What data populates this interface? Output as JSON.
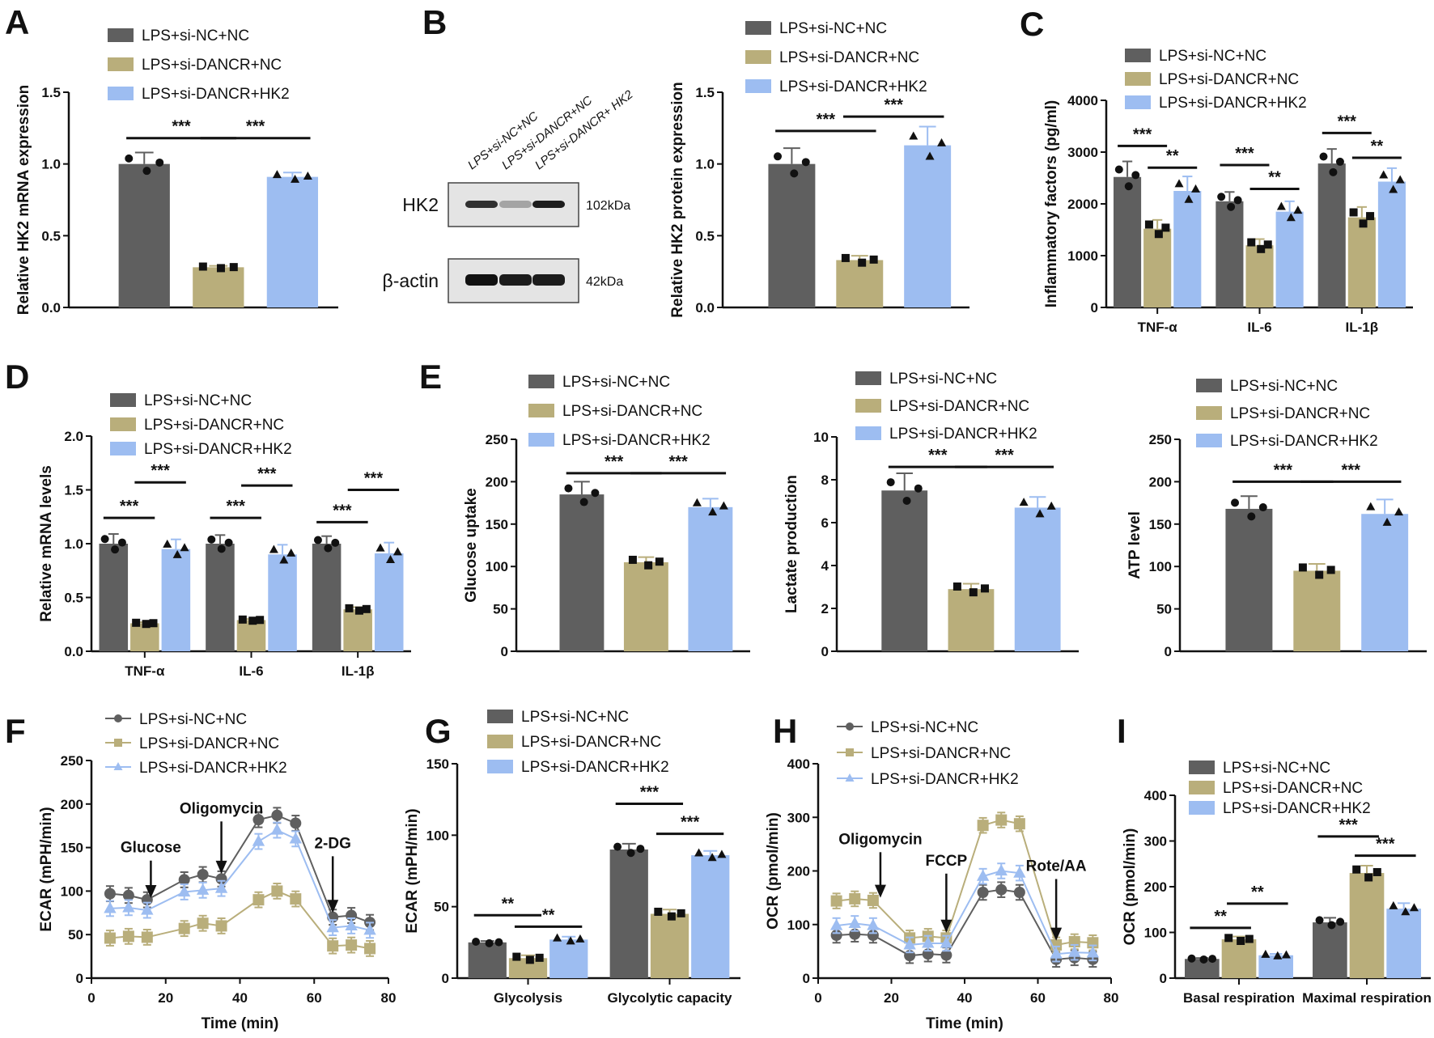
{
  "colors": {
    "nc": "#5f5f5f",
    "dancr": "#b9ae7b",
    "hk2": "#9dbdf1"
  },
  "legend": [
    "LPS+si-NC+NC",
    "LPS+si-DANCR+NC",
    "LPS+si-DANCR+HK2"
  ],
  "blot": {
    "lanes": [
      "LPS+si-NC+NC",
      "LPS+si-DANCR+NC",
      "LPS+si-DANCR+ HK2"
    ],
    "rows": [
      {
        "label": "HK2",
        "size": "102kDa",
        "intensity": [
          0.85,
          0.3,
          0.95
        ]
      },
      {
        "label": "β-actin",
        "size": "42kDa",
        "intensity": [
          1,
          0.95,
          0.95
        ]
      }
    ]
  },
  "chart_data": [
    {
      "id": "A",
      "letter": "A",
      "type": "bar",
      "ylabel": "Relative HK2 mRNA expression",
      "ylim": [
        0,
        1.5
      ],
      "ticks": [
        "0.0",
        "0.5",
        "1.0",
        "1.5"
      ],
      "categories": [
        ""
      ],
      "series": [
        {
          "values": [
            1.0
          ],
          "err": [
            0.08
          ]
        },
        {
          "values": [
            0.28
          ],
          "err": [
            0.01
          ]
        },
        {
          "values": [
            0.91
          ],
          "err": [
            0.03
          ]
        }
      ],
      "sig": [
        {
          "group": 0,
          "from": 0,
          "to": 1,
          "y": 1.18,
          "label": "***"
        },
        {
          "group": 0,
          "from": 1,
          "to": 2,
          "y": 1.18,
          "label": "***"
        }
      ]
    },
    {
      "id": "B",
      "letter": "B",
      "type": "bar",
      "ylabel": "Relative HK2 protein expression",
      "ylim": [
        0,
        1.5
      ],
      "ticks": [
        "0.0",
        "0.5",
        "1.0",
        "1.5"
      ],
      "categories": [
        ""
      ],
      "series": [
        {
          "values": [
            1.0
          ],
          "err": [
            0.11
          ]
        },
        {
          "values": [
            0.33
          ],
          "err": [
            0.03
          ]
        },
        {
          "values": [
            1.13
          ],
          "err": [
            0.13
          ]
        }
      ],
      "sig": [
        {
          "group": 0,
          "from": 0,
          "to": 1,
          "y": 1.23,
          "label": "***"
        },
        {
          "group": 0,
          "from": 1,
          "to": 2,
          "y": 1.33,
          "label": "***"
        }
      ]
    },
    {
      "id": "C",
      "letter": "C",
      "type": "bar",
      "ylabel": "Inflammatory factors (pg/ml)",
      "ylim": [
        0,
        4000
      ],
      "ticks": [
        "0",
        "1000",
        "2000",
        "3000",
        "4000"
      ],
      "categories": [
        "TNF-α",
        "IL-6",
        "IL-1β"
      ],
      "series": [
        {
          "values": [
            2520,
            2050,
            2780
          ],
          "err": [
            300,
            180,
            280
          ]
        },
        {
          "values": [
            1520,
            1200,
            1740
          ],
          "err": [
            170,
            120,
            200
          ]
        },
        {
          "values": [
            2250,
            1850,
            2430
          ],
          "err": [
            280,
            200,
            260
          ]
        }
      ],
      "sig": [
        {
          "group": 0,
          "from": 0,
          "to": 1,
          "y": 3120,
          "label": "***"
        },
        {
          "group": 0,
          "from": 1,
          "to": 2,
          "y": 2700,
          "label": "**"
        },
        {
          "group": 1,
          "from": 0,
          "to": 1,
          "y": 2750,
          "label": "***"
        },
        {
          "group": 1,
          "from": 1,
          "to": 2,
          "y": 2290,
          "label": "**"
        },
        {
          "group": 2,
          "from": 0,
          "to": 1,
          "y": 3370,
          "label": "***"
        },
        {
          "group": 2,
          "from": 1,
          "to": 2,
          "y": 2890,
          "label": "**"
        }
      ]
    },
    {
      "id": "D",
      "letter": "D",
      "type": "bar",
      "ylabel": "Relative mRNA levels",
      "ylim": [
        0,
        2.0
      ],
      "ticks": [
        "0.0",
        "0.5",
        "1.0",
        "1.5",
        "2.0"
      ],
      "categories": [
        "TNF-α",
        "IL-6",
        "IL-1β"
      ],
      "series": [
        {
          "values": [
            1.0,
            1.0,
            1.0
          ],
          "err": [
            0.09,
            0.08,
            0.07
          ]
        },
        {
          "values": [
            0.26,
            0.29,
            0.39
          ],
          "err": [
            0.01,
            0.01,
            0.02
          ]
        },
        {
          "values": [
            0.95,
            0.9,
            0.91
          ],
          "err": [
            0.09,
            0.09,
            0.1
          ]
        }
      ],
      "sig": [
        {
          "group": 0,
          "from": 0,
          "to": 1,
          "y": 1.24,
          "label": "***"
        },
        {
          "group": 0,
          "from": 1,
          "to": 2,
          "y": 1.57,
          "label": "***"
        },
        {
          "group": 1,
          "from": 0,
          "to": 1,
          "y": 1.24,
          "label": "***"
        },
        {
          "group": 1,
          "from": 1,
          "to": 2,
          "y": 1.54,
          "label": "***"
        },
        {
          "group": 2,
          "from": 0,
          "to": 1,
          "y": 1.2,
          "label": "***"
        },
        {
          "group": 2,
          "from": 1,
          "to": 2,
          "y": 1.5,
          "label": "***"
        }
      ]
    },
    {
      "id": "E1",
      "letter": "E",
      "type": "bar",
      "ylabel": "Glucose uptake",
      "ylim": [
        0,
        250
      ],
      "ticks": [
        "0",
        "50",
        "100",
        "150",
        "200",
        "250"
      ],
      "categories": [
        ""
      ],
      "series": [
        {
          "values": [
            185
          ],
          "err": [
            15
          ]
        },
        {
          "values": [
            105
          ],
          "err": [
            6
          ]
        },
        {
          "values": [
            170
          ],
          "err": [
            10
          ]
        }
      ],
      "sig": [
        {
          "group": 0,
          "from": 0,
          "to": 1,
          "y": 210,
          "label": "***"
        },
        {
          "group": 0,
          "from": 1,
          "to": 2,
          "y": 210,
          "label": "***"
        }
      ]
    },
    {
      "id": "E2",
      "letter": "",
      "type": "bar",
      "ylabel": "Lactate production",
      "ylim": [
        0,
        10
      ],
      "ticks": [
        "0",
        "2",
        "4",
        "6",
        "8",
        "10"
      ],
      "categories": [
        ""
      ],
      "series": [
        {
          "values": [
            7.5
          ],
          "err": [
            0.8
          ]
        },
        {
          "values": [
            2.9
          ],
          "err": [
            0.25
          ]
        },
        {
          "values": [
            6.7
          ],
          "err": [
            0.5
          ]
        }
      ],
      "sig": [
        {
          "group": 0,
          "from": 0,
          "to": 1,
          "y": 8.6,
          "label": "***"
        },
        {
          "group": 0,
          "from": 1,
          "to": 2,
          "y": 8.6,
          "label": "***"
        }
      ]
    },
    {
      "id": "E3",
      "letter": "",
      "type": "bar",
      "ylabel": "ATP level",
      "ylim": [
        0,
        250
      ],
      "ticks": [
        "0",
        "50",
        "100",
        "150",
        "200",
        "250"
      ],
      "categories": [
        ""
      ],
      "series": [
        {
          "values": [
            168
          ],
          "err": [
            15
          ]
        },
        {
          "values": [
            95
          ],
          "err": [
            8
          ]
        },
        {
          "values": [
            162
          ],
          "err": [
            17
          ]
        }
      ],
      "sig": [
        {
          "group": 0,
          "from": 0,
          "to": 1,
          "y": 200,
          "label": "***"
        },
        {
          "group": 0,
          "from": 1,
          "to": 2,
          "y": 200,
          "label": "***"
        }
      ]
    },
    {
      "id": "F",
      "letter": "F",
      "type": "line",
      "ylabel": "ECAR (mPH/min)",
      "xlabel": "Time (min)",
      "xlim": [
        0,
        80
      ],
      "xticks": [
        "0",
        "20",
        "40",
        "60",
        "80"
      ],
      "ylim": [
        0,
        250
      ],
      "ticks": [
        "0",
        "50",
        "100",
        "150",
        "200",
        "250"
      ],
      "x": [
        5,
        10,
        15,
        25,
        30,
        35,
        45,
        50,
        55,
        65,
        70,
        75
      ],
      "series": [
        {
          "values": [
            97,
            95,
            90,
            113,
            119,
            114,
            182,
            187,
            178,
            70,
            72,
            64
          ]
        },
        {
          "values": [
            46,
            48,
            47,
            57,
            63,
            60,
            90,
            100,
            91,
            37,
            38,
            34
          ]
        },
        {
          "values": [
            80,
            81,
            78,
            99,
            101,
            103,
            157,
            170,
            160,
            58,
            60,
            55
          ]
        }
      ],
      "annotations": [
        {
          "label": "Glucose",
          "x": 16,
          "y": 92,
          "top": 135
        },
        {
          "label": "Oligomycin",
          "x": 35,
          "y": 120,
          "top": 180
        },
        {
          "label": "2-DG",
          "x": 65,
          "y": 75,
          "top": 140
        }
      ]
    },
    {
      "id": "G",
      "letter": "G",
      "type": "bar",
      "ylabel": "ECAR (mPH/min)",
      "ylim": [
        0,
        150
      ],
      "ticks": [
        "0",
        "50",
        "100",
        "150"
      ],
      "categories": [
        "Glycolysis",
        "Glycolytic capacity"
      ],
      "series": [
        {
          "values": [
            25,
            90
          ],
          "err": [
            1,
            4
          ]
        },
        {
          "values": [
            14,
            45
          ],
          "err": [
            2,
            3
          ]
        },
        {
          "values": [
            27,
            86
          ],
          "err": [
            2,
            3
          ]
        }
      ],
      "sig": [
        {
          "group": 0,
          "from": 0,
          "to": 1,
          "y": 44,
          "label": "**"
        },
        {
          "group": 0,
          "from": 1,
          "to": 2,
          "y": 36,
          "label": "**"
        },
        {
          "group": 1,
          "from": 0,
          "to": 1,
          "y": 122,
          "label": "***"
        },
        {
          "group": 1,
          "from": 1,
          "to": 2,
          "y": 101,
          "label": "***"
        }
      ]
    },
    {
      "id": "H",
      "letter": "H",
      "type": "line",
      "ylabel": "OCR (pmol/min)",
      "xlabel": "Time (min)",
      "xlim": [
        0,
        80
      ],
      "xticks": [
        "0",
        "20",
        "40",
        "60",
        "80"
      ],
      "ylim": [
        0,
        400
      ],
      "ticks": [
        "0",
        "100",
        "200",
        "300",
        "400"
      ],
      "x": [
        5,
        10,
        15,
        25,
        30,
        35,
        45,
        50,
        55,
        65,
        70,
        75
      ],
      "series": [
        {
          "values": [
            80,
            82,
            80,
            42,
            45,
            43,
            160,
            165,
            160,
            35,
            38,
            35
          ]
        },
        {
          "values": [
            144,
            148,
            145,
            75,
            78,
            75,
            285,
            295,
            288,
            62,
            68,
            66
          ]
        },
        {
          "values": [
            98,
            102,
            98,
            62,
            65,
            65,
            190,
            200,
            196,
            45,
            48,
            47
          ]
        }
      ],
      "annotations": [
        {
          "label": "Oligomycin",
          "x": 17,
          "y": 150,
          "top": 235
        },
        {
          "label": "FCCP",
          "x": 35,
          "y": 85,
          "top": 195
        },
        {
          "label": "Rote/AA",
          "x": 65,
          "y": 70,
          "top": 185
        }
      ]
    },
    {
      "id": "I",
      "letter": "I",
      "type": "bar",
      "ylabel": "OCR (pmol/min)",
      "ylim": [
        0,
        400
      ],
      "ticks": [
        "0",
        "100",
        "200",
        "300",
        "400"
      ],
      "categories": [
        "Basal respiration",
        "Maximal respiration"
      ],
      "series": [
        {
          "values": [
            42,
            122
          ],
          "err": [
            2,
            10
          ]
        },
        {
          "values": [
            85,
            230
          ],
          "err": [
            6,
            16
          ]
        },
        {
          "values": [
            50,
            152
          ],
          "err": [
            3,
            12
          ]
        }
      ],
      "sig": [
        {
          "group": 0,
          "from": 0,
          "to": 1,
          "y": 110,
          "label": "**"
        },
        {
          "group": 0,
          "from": 1,
          "to": 2,
          "y": 163,
          "label": "**"
        },
        {
          "group": 1,
          "from": 0,
          "to": 1,
          "y": 310,
          "label": "***"
        },
        {
          "group": 1,
          "from": 1,
          "to": 2,
          "y": 268,
          "label": "***"
        }
      ]
    }
  ]
}
